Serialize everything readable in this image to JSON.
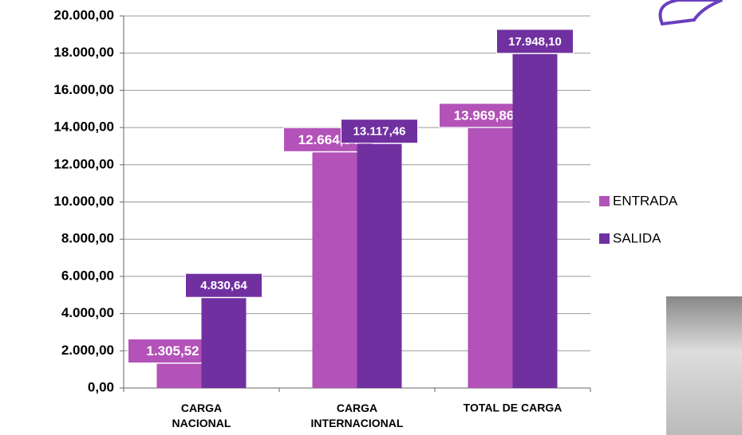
{
  "chart_data": {
    "type": "bar",
    "categories": [
      "CARGA NACIONAL",
      "CARGA INTERNACIONAL",
      "TOTAL DE CARGA"
    ],
    "series": [
      {
        "name": "ENTRADA",
        "color": "#b352b8",
        "values": [
          1305.52,
          12664.34,
          13969.86
        ],
        "value_labels": [
          "1.305,52",
          "12.664,34",
          "13.969,86"
        ]
      },
      {
        "name": "SALIDA",
        "color": "#7030a0",
        "values": [
          4830.64,
          13117.46,
          17948.1
        ],
        "value_labels": [
          "4.830,64",
          "13.117,46",
          "17.948,10"
        ]
      }
    ],
    "ylim": [
      0,
      20000
    ],
    "yticks": [
      {
        "value": 0,
        "label": "0,00"
      },
      {
        "value": 2000,
        "label": "2.000,00"
      },
      {
        "value": 4000,
        "label": "4.000,00"
      },
      {
        "value": 6000,
        "label": "6.000,00"
      },
      {
        "value": 8000,
        "label": "8.000,00"
      },
      {
        "value": 10000,
        "label": "10.000,00"
      },
      {
        "value": 12000,
        "label": "12.000,00"
      },
      {
        "value": 14000,
        "label": "14.000,00"
      },
      {
        "value": 16000,
        "label": "16.000,00"
      },
      {
        "value": 18000,
        "label": "18.000,00"
      },
      {
        "value": 20000,
        "label": "20.000,00"
      }
    ],
    "grid": true,
    "legend": "right"
  }
}
